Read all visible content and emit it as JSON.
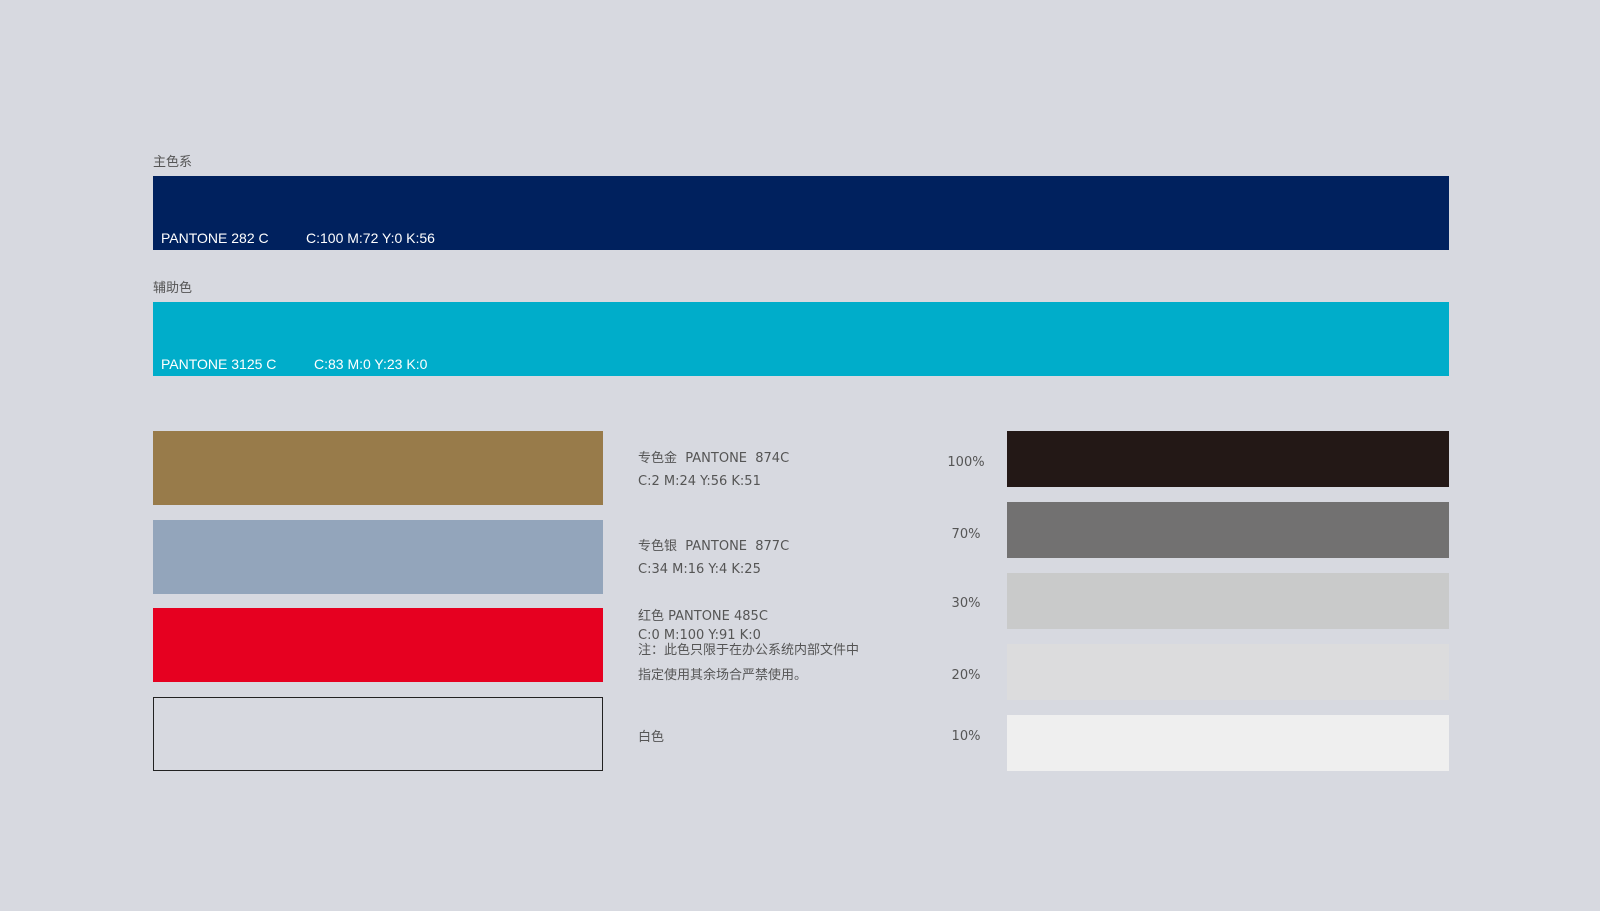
{
  "primary": {
    "heading": "主色系",
    "pantone": "PANTONE 282 C",
    "cmyk": "C:100 M:72 Y:0 K:56",
    "color": "#00215e"
  },
  "secondary": {
    "heading": "辅助色",
    "pantone": "PANTONE 3125 C",
    "cmyk": "C:83 M:0 Y:23 K:0",
    "color": "#00adca"
  },
  "spot": [
    {
      "name": "专色金  PANTONE  874C",
      "cmyk": "C:2 M:24 Y:56 K:51",
      "color": "#987b4a"
    },
    {
      "name": "专色银  PANTONE  877C",
      "cmyk": "C:34 M:16 Y:4 K:25",
      "color": "#93a5bb"
    },
    {
      "name": "红色 PANTONE 485C",
      "cmyk": "C:0 M:100 Y:91 K:0",
      "note1": "注：此色只限于在办公系统内部文件中",
      "note2": "指定使用其余场合严禁使用。",
      "color": "#e60020"
    },
    {
      "name": "白色",
      "color": "#d7d9e0"
    }
  ],
  "tints": [
    {
      "label": "100%",
      "color": "#231816"
    },
    {
      "label": "70%",
      "color": "#727171"
    },
    {
      "label": "30%",
      "color": "#c9caca"
    },
    {
      "label": "20%",
      "color": "#dcdcdd"
    },
    {
      "label": "10%",
      "color": "#efefef"
    }
  ]
}
